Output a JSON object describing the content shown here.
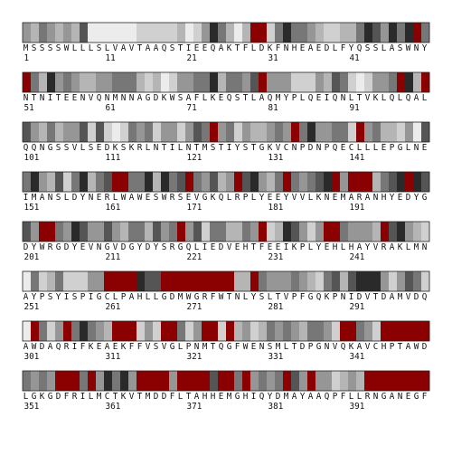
{
  "chart_data": {
    "type": "heatmap",
    "residues_per_row": 50,
    "rows": [
      {
        "start": 1,
        "sequence": "MSSSSWLLLSLVAVTAAQSTIEEQAKTFLDKFNHEAEDLFYQSSLASWNY",
        "shades": [
          4,
          5,
          3,
          4,
          5,
          4,
          5,
          2,
          7,
          7,
          7,
          7,
          7,
          7,
          6,
          6,
          6,
          6,
          6,
          5,
          7,
          6,
          4,
          1,
          3,
          5,
          7,
          5,
          0,
          0,
          6,
          3,
          1,
          3,
          3,
          4,
          5,
          6,
          6,
          5,
          5,
          3,
          1,
          2,
          4,
          1,
          3,
          1,
          0,
          3
        ],
        "labels": [
          "1",
          "11",
          "21",
          "31",
          "41"
        ]
      },
      {
        "start": 51,
        "sequence": "NTNITEENVQNMNNAGDKWSAFLKEQSTLAQMYPLQEIQNLTVKLQLQAL",
        "shades": [
          0,
          3,
          5,
          1,
          4,
          3,
          4,
          5,
          5,
          4,
          4,
          3,
          3,
          3,
          5,
          6,
          5,
          7,
          6,
          4,
          4,
          3,
          3,
          1,
          5,
          3,
          3,
          4,
          2,
          0,
          4,
          4,
          4,
          6,
          6,
          6,
          4,
          5,
          2,
          3,
          6,
          7,
          6,
          4,
          4,
          3,
          0,
          1,
          5,
          0
        ],
        "labels": [
          "51",
          "61",
          "71",
          "81",
          "91"
        ]
      },
      {
        "start": 101,
        "sequence": "QQNGSSVLSEDKSKRLNTILNTMSTIYSTGKVCNPDNPQECLLLEPGLNE",
        "shades": [
          2,
          4,
          5,
          3,
          5,
          4,
          4,
          2,
          6,
          2,
          6,
          7,
          6,
          3,
          4,
          3,
          6,
          4,
          4,
          6,
          4,
          2,
          3,
          0,
          4,
          3,
          6,
          4,
          5,
          5,
          4,
          3,
          4,
          0,
          3,
          1,
          4,
          4,
          3,
          3,
          6,
          0,
          4,
          3,
          5,
          5,
          6,
          4,
          7,
          2
        ],
        "labels": [
          "101",
          "111",
          "121",
          "131",
          "141"
        ]
      },
      {
        "start": 151,
        "sequence": "IMANSLDYNERLWAWESWRSEVGKQLRPLYEEYVVLKNEMARANHYEDYG",
        "shades": [
          3,
          1,
          4,
          5,
          2,
          6,
          3,
          1,
          5,
          3,
          2,
          0,
          0,
          3,
          3,
          1,
          5,
          1,
          3,
          2,
          0,
          3,
          4,
          2,
          5,
          4,
          0,
          2,
          1,
          4,
          5,
          3,
          0,
          3,
          4,
          3,
          2,
          1,
          0,
          4,
          0,
          0,
          0,
          5,
          3,
          2,
          1,
          0,
          1,
          2
        ],
        "labels": [
          "151",
          "161",
          "171",
          "181",
          "191"
        ]
      },
      {
        "start": 201,
        "sequence": "DYWRGDYEVNGVDGYDYSRGQLIEDVEHTFEEIKPLYEHLHAYVRAKLMN",
        "shades": [
          2,
          4,
          0,
          0,
          3,
          4,
          1,
          2,
          4,
          4,
          2,
          4,
          5,
          3,
          3,
          5,
          2,
          4,
          3,
          0,
          4,
          2,
          6,
          3,
          3,
          5,
          5,
          3,
          4,
          0,
          6,
          5,
          1,
          2,
          4,
          6,
          4,
          0,
          0,
          3,
          4,
          4,
          4,
          5,
          0,
          2,
          1,
          4,
          5,
          6
        ],
        "labels": [
          "201",
          "211",
          "221",
          "231",
          "241"
        ]
      },
      {
        "start": 251,
        "sequence": "AYPSYISPIGCLPAHLLGDMWGRFWTNLYSLTVPFGQKPNIDVTDAMVDQ",
        "shades": [
          7,
          3,
          6,
          5,
          3,
          6,
          6,
          6,
          4,
          4,
          0,
          0,
          0,
          0,
          1,
          2,
          2,
          0,
          0,
          0,
          0,
          0,
          0,
          0,
          0,
          0,
          5,
          5,
          0,
          3,
          4,
          4,
          4,
          3,
          4,
          5,
          6,
          3,
          2,
          5,
          2,
          1,
          1,
          1,
          4,
          6,
          4,
          2,
          3,
          6
        ],
        "labels": [
          "251",
          "261",
          "271",
          "281",
          "291"
        ]
      },
      {
        "start": 301,
        "sequence": "AWDAQRIFKEAEKFFVSVGLPNMTQGFWENSMLTDPGNVQKAVCHPTAWD",
        "shades": [
          7,
          0,
          3,
          6,
          4,
          0,
          3,
          1,
          3,
          4,
          5,
          0,
          0,
          0,
          6,
          4,
          6,
          0,
          0,
          3,
          6,
          4,
          0,
          0,
          6,
          0,
          5,
          4,
          6,
          5,
          3,
          4,
          3,
          4,
          5,
          3,
          3,
          4,
          6,
          0,
          0,
          3,
          4,
          6,
          0,
          0,
          0,
          0,
          0,
          0
        ],
        "labels": [
          "301",
          "311",
          "321",
          "331",
          "341"
        ]
      },
      {
        "start": 351,
        "sequence": "LGKGDFRILMCTKVTMDDFLTAHHEMGHIQYDMAYAAQPFLLRNGANEGF",
        "shades": [
          3,
          4,
          3,
          4,
          0,
          0,
          0,
          3,
          0,
          4,
          1,
          3,
          1,
          4,
          0,
          0,
          0,
          0,
          4,
          0,
          0,
          0,
          0,
          2,
          0,
          0,
          3,
          0,
          4,
          3,
          4,
          3,
          0,
          2,
          4,
          0,
          4,
          4,
          6,
          5,
          4,
          5,
          0,
          0,
          0,
          0,
          0,
          0,
          0,
          0
        ],
        "labels": [
          "351",
          "361",
          "371",
          "381",
          "391"
        ]
      }
    ],
    "palette": {
      "0": "#8b0000",
      "1": "#2a2a2a",
      "2": "#555555",
      "3": "#777777",
      "4": "#969696",
      "5": "#b5b5b5",
      "6": "#d0d0d0",
      "7": "#ececec"
    }
  }
}
